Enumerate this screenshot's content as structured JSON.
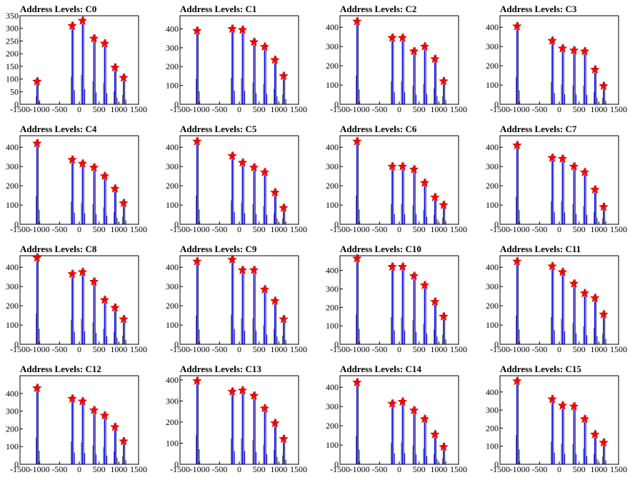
{
  "chart_data": [
    {
      "title": "Address Levels: C0",
      "type": "bar",
      "ylim": [
        0,
        350
      ],
      "yticks": [
        0,
        50,
        100,
        150,
        200,
        250,
        300,
        350
      ],
      "peaks": [
        {
          "x": -1070,
          "y": 90
        },
        {
          "x": -180,
          "y": 310
        },
        {
          "x": 80,
          "y": 330
        },
        {
          "x": 370,
          "y": 260
        },
        {
          "x": 640,
          "y": 240
        },
        {
          "x": 900,
          "y": 145
        },
        {
          "x": 1120,
          "y": 105
        }
      ],
      "xlim": [
        -1500,
        1500
      ],
      "xticks": [
        -1500,
        -1000,
        -500,
        0,
        500,
        1000,
        1500
      ],
      "xtick_labels": [
        "-1500",
        "-1000",
        "-500",
        "0",
        "500",
        "1000",
        "1500"
      ]
    },
    {
      "title": "Address Levels: C1",
      "type": "bar",
      "ylim": [
        0,
        470
      ],
      "yticks": [
        0,
        100,
        200,
        300,
        400
      ],
      "peaks": [
        {
          "x": -1070,
          "y": 390
        },
        {
          "x": -180,
          "y": 400
        },
        {
          "x": 80,
          "y": 395
        },
        {
          "x": 370,
          "y": 330
        },
        {
          "x": 640,
          "y": 305
        },
        {
          "x": 900,
          "y": 235
        },
        {
          "x": 1120,
          "y": 150
        }
      ],
      "xlim": [
        -1500,
        1500
      ],
      "xticks": [
        -1500,
        -1000,
        -500,
        0,
        500,
        1000,
        1500
      ],
      "xtick_labels": [
        "-1500",
        "-1000",
        "-500",
        "0",
        "500",
        "1000",
        "1500"
      ]
    },
    {
      "title": "Address Levels: C2",
      "type": "bar",
      "ylim": [
        0,
        460
      ],
      "yticks": [
        0,
        100,
        200,
        300,
        400
      ],
      "peaks": [
        {
          "x": -1070,
          "y": 430
        },
        {
          "x": -180,
          "y": 345
        },
        {
          "x": 80,
          "y": 345
        },
        {
          "x": 370,
          "y": 275
        },
        {
          "x": 640,
          "y": 300
        },
        {
          "x": 900,
          "y": 235
        },
        {
          "x": 1120,
          "y": 120
        }
      ],
      "xlim": [
        -1500,
        1500
      ],
      "xticks": [
        -1500,
        -1000,
        -500,
        0,
        500,
        1000,
        1500
      ],
      "xtick_labels": [
        "-1500",
        "-1000",
        "-500",
        "0",
        "500",
        "1000",
        "1500"
      ]
    },
    {
      "title": "Address Levels: C3",
      "type": "bar",
      "ylim": [
        0,
        460
      ],
      "yticks": [
        0,
        100,
        200,
        300,
        400
      ],
      "peaks": [
        {
          "x": -1070,
          "y": 405
        },
        {
          "x": -180,
          "y": 330
        },
        {
          "x": 80,
          "y": 290
        },
        {
          "x": 370,
          "y": 280
        },
        {
          "x": 640,
          "y": 275
        },
        {
          "x": 900,
          "y": 180
        },
        {
          "x": 1120,
          "y": 95
        }
      ],
      "xlim": [
        -1500,
        1500
      ],
      "xticks": [
        -1500,
        -1000,
        -500,
        0,
        500,
        1000,
        1500
      ],
      "xtick_labels": [
        "-1500",
        "-1000",
        "-500",
        "0",
        "500",
        "1000",
        "1500"
      ]
    },
    {
      "title": "Address Levels: C4",
      "type": "bar",
      "ylim": [
        0,
        460
      ],
      "yticks": [
        0,
        100,
        200,
        300,
        400
      ],
      "peaks": [
        {
          "x": -1070,
          "y": 420
        },
        {
          "x": -180,
          "y": 335
        },
        {
          "x": 80,
          "y": 315
        },
        {
          "x": 370,
          "y": 295
        },
        {
          "x": 640,
          "y": 250
        },
        {
          "x": 900,
          "y": 185
        },
        {
          "x": 1120,
          "y": 110
        }
      ],
      "xlim": [
        -1500,
        1500
      ],
      "xticks": [
        -1500,
        -1000,
        -500,
        0,
        500,
        1000,
        1500
      ],
      "xtick_labels": [
        "-1500",
        "-1000",
        "-500",
        "0",
        "500",
        "1000",
        "1500"
      ]
    },
    {
      "title": "Address Levels: C5",
      "type": "bar",
      "ylim": [
        0,
        460
      ],
      "yticks": [
        0,
        100,
        200,
        300,
        400
      ],
      "peaks": [
        {
          "x": -1070,
          "y": 430
        },
        {
          "x": -180,
          "y": 355
        },
        {
          "x": 80,
          "y": 320
        },
        {
          "x": 370,
          "y": 295
        },
        {
          "x": 640,
          "y": 270
        },
        {
          "x": 900,
          "y": 165
        },
        {
          "x": 1120,
          "y": 85
        }
      ],
      "xlim": [
        -1500,
        1500
      ],
      "xticks": [
        -1500,
        -1000,
        -500,
        0,
        500,
        1000,
        1500
      ],
      "xtick_labels": [
        "-1500",
        "-1000",
        "-500",
        "0",
        "500",
        "1000",
        "1500"
      ]
    },
    {
      "title": "Address Levels: C6",
      "type": "bar",
      "ylim": [
        0,
        460
      ],
      "yticks": [
        0,
        100,
        200,
        300,
        400
      ],
      "peaks": [
        {
          "x": -1070,
          "y": 430
        },
        {
          "x": -180,
          "y": 300
        },
        {
          "x": 80,
          "y": 300
        },
        {
          "x": 370,
          "y": 285
        },
        {
          "x": 640,
          "y": 215
        },
        {
          "x": 900,
          "y": 140
        },
        {
          "x": 1120,
          "y": 100
        }
      ],
      "xlim": [
        -1500,
        1500
      ],
      "xticks": [
        -1500,
        -1000,
        -500,
        0,
        500,
        1000,
        1500
      ],
      "xtick_labels": [
        "-1500",
        "-1000",
        "-500",
        "0",
        "500",
        "1000",
        "1500"
      ]
    },
    {
      "title": "Address Levels: C7",
      "type": "bar",
      "ylim": [
        0,
        460
      ],
      "yticks": [
        0,
        100,
        200,
        300,
        400
      ],
      "peaks": [
        {
          "x": -1070,
          "y": 410
        },
        {
          "x": -180,
          "y": 345
        },
        {
          "x": 80,
          "y": 340
        },
        {
          "x": 370,
          "y": 300
        },
        {
          "x": 640,
          "y": 270
        },
        {
          "x": 900,
          "y": 180
        },
        {
          "x": 1120,
          "y": 90
        }
      ],
      "xlim": [
        -1500,
        1500
      ],
      "xticks": [
        -1500,
        -1000,
        -500,
        0,
        500,
        1000,
        1500
      ],
      "xtick_labels": [
        "-1500",
        "-1000",
        "-500",
        "0",
        "500",
        "1000",
        "1500"
      ]
    },
    {
      "title": "Address Levels: C8",
      "type": "bar",
      "ylim": [
        0,
        460
      ],
      "yticks": [
        0,
        100,
        200,
        300,
        400
      ],
      "peaks": [
        {
          "x": -1070,
          "y": 450
        },
        {
          "x": -180,
          "y": 365
        },
        {
          "x": 80,
          "y": 375
        },
        {
          "x": 370,
          "y": 325
        },
        {
          "x": 640,
          "y": 230
        },
        {
          "x": 900,
          "y": 190
        },
        {
          "x": 1120,
          "y": 130
        }
      ],
      "xlim": [
        -1500,
        1500
      ],
      "xticks": [
        -1500,
        -1000,
        -500,
        0,
        500,
        1000,
        1500
      ],
      "xtick_labels": [
        "-1500",
        "-1000",
        "-500",
        "0",
        "500",
        "1000",
        "1500"
      ]
    },
    {
      "title": "Address Levels: C9",
      "type": "bar",
      "ylim": [
        0,
        460
      ],
      "yticks": [
        0,
        100,
        200,
        300,
        400
      ],
      "peaks": [
        {
          "x": -1070,
          "y": 430
        },
        {
          "x": -180,
          "y": 440
        },
        {
          "x": 80,
          "y": 385
        },
        {
          "x": 370,
          "y": 385
        },
        {
          "x": 640,
          "y": 285
        },
        {
          "x": 900,
          "y": 225
        },
        {
          "x": 1120,
          "y": 130
        }
      ],
      "xlim": [
        -1500,
        1500
      ],
      "xticks": [
        -1500,
        -1000,
        -500,
        0,
        500,
        1000,
        1500
      ],
      "xtick_labels": [
        "-1500",
        "-1000",
        "-500",
        "0",
        "500",
        "1000",
        "1500"
      ]
    },
    {
      "title": "Address Levels: C10",
      "type": "bar",
      "ylim": [
        0,
        480
      ],
      "yticks": [
        0,
        100,
        200,
        300,
        400
      ],
      "peaks": [
        {
          "x": -1070,
          "y": 465
        },
        {
          "x": -180,
          "y": 420
        },
        {
          "x": 80,
          "y": 420
        },
        {
          "x": 370,
          "y": 370
        },
        {
          "x": 640,
          "y": 320
        },
        {
          "x": 900,
          "y": 230
        },
        {
          "x": 1120,
          "y": 150
        }
      ],
      "xlim": [
        -1500,
        1500
      ],
      "xticks": [
        -1500,
        -1000,
        -500,
        0,
        500,
        1000,
        1500
      ],
      "xtick_labels": [
        "-1500",
        "-1000",
        "-500",
        "0",
        "500",
        "1000",
        "1500"
      ]
    },
    {
      "title": "Address Levels: C11",
      "type": "bar",
      "ylim": [
        0,
        460
      ],
      "yticks": [
        0,
        100,
        200,
        300,
        400
      ],
      "peaks": [
        {
          "x": -1070,
          "y": 430
        },
        {
          "x": -180,
          "y": 405
        },
        {
          "x": 80,
          "y": 375
        },
        {
          "x": 370,
          "y": 315
        },
        {
          "x": 640,
          "y": 265
        },
        {
          "x": 900,
          "y": 240
        },
        {
          "x": 1120,
          "y": 155
        }
      ],
      "xlim": [
        -1500,
        1500
      ],
      "xticks": [
        -1500,
        -1000,
        -500,
        0,
        500,
        1000,
        1500
      ],
      "xtick_labels": [
        "-1500",
        "-1000",
        "-500",
        "0",
        "500",
        "1000",
        "1500"
      ]
    },
    {
      "title": "Address Levels: C12",
      "type": "bar",
      "ylim": [
        0,
        500
      ],
      "yticks": [
        0,
        100,
        200,
        300,
        400
      ],
      "peaks": [
        {
          "x": -1070,
          "y": 430
        },
        {
          "x": -180,
          "y": 370
        },
        {
          "x": 80,
          "y": 355
        },
        {
          "x": 370,
          "y": 305
        },
        {
          "x": 640,
          "y": 275
        },
        {
          "x": 900,
          "y": 210
        },
        {
          "x": 1120,
          "y": 130
        }
      ],
      "xlim": [
        -1500,
        1500
      ],
      "xticks": [
        -1500,
        -1000,
        -500,
        0,
        500,
        1000,
        1500
      ],
      "xtick_labels": [
        "-1500",
        "-1000",
        "-500",
        "0",
        "500",
        "1000",
        "1500"
      ]
    },
    {
      "title": "Address Levels: C13",
      "type": "bar",
      "ylim": [
        0,
        420
      ],
      "yticks": [
        0,
        100,
        200,
        300,
        400
      ],
      "peaks": [
        {
          "x": -1070,
          "y": 395
        },
        {
          "x": -180,
          "y": 345
        },
        {
          "x": 80,
          "y": 350
        },
        {
          "x": 370,
          "y": 325
        },
        {
          "x": 640,
          "y": 265
        },
        {
          "x": 900,
          "y": 195
        },
        {
          "x": 1120,
          "y": 120
        }
      ],
      "xlim": [
        -1500,
        1500
      ],
      "xticks": [
        -1500,
        -1000,
        -500,
        0,
        500,
        1000,
        1500
      ],
      "xtick_labels": [
        "-1500",
        "-1000",
        "-500",
        "0",
        "500",
        "1000",
        "1500"
      ]
    },
    {
      "title": "Address Levels: C14",
      "type": "bar",
      "ylim": [
        0,
        460
      ],
      "yticks": [
        0,
        100,
        200,
        300,
        400
      ],
      "peaks": [
        {
          "x": -1070,
          "y": 425
        },
        {
          "x": -180,
          "y": 315
        },
        {
          "x": 80,
          "y": 325
        },
        {
          "x": 370,
          "y": 280
        },
        {
          "x": 640,
          "y": 235
        },
        {
          "x": 900,
          "y": 155
        },
        {
          "x": 1120,
          "y": 90
        }
      ],
      "xlim": [
        -1500,
        1500
      ],
      "xticks": [
        -1500,
        -1000,
        -500,
        0,
        500,
        1000,
        1500
      ],
      "xtick_labels": [
        "-1500",
        "-1000",
        "-500",
        "0",
        "500",
        "1000",
        "1500"
      ]
    },
    {
      "title": "Address Levels: C15",
      "type": "bar",
      "ylim": [
        0,
        490
      ],
      "yticks": [
        0,
        100,
        200,
        300,
        400
      ],
      "peaks": [
        {
          "x": -1070,
          "y": 460
        },
        {
          "x": -180,
          "y": 360
        },
        {
          "x": 80,
          "y": 325
        },
        {
          "x": 370,
          "y": 320
        },
        {
          "x": 640,
          "y": 250
        },
        {
          "x": 900,
          "y": 165
        },
        {
          "x": 1120,
          "y": 120
        }
      ],
      "xlim": [
        -1500,
        1500
      ],
      "xticks": [
        -1500,
        -1000,
        -500,
        0,
        500,
        1000,
        1500
      ],
      "xtick_labels": [
        "-1500",
        "-1000",
        "-500",
        "0",
        "500",
        "1000",
        "1500"
      ]
    }
  ],
  "colors": {
    "histogram": "#0000ff",
    "marker": "#ff0000",
    "marker_edge": "#cc0000",
    "axis": "#000000"
  }
}
